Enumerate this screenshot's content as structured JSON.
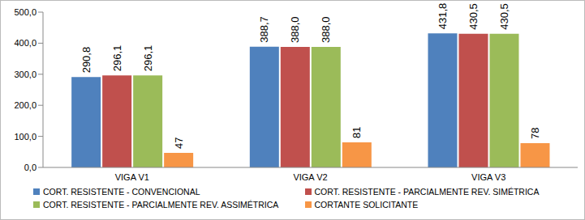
{
  "chart_data": {
    "type": "bar",
    "categories": [
      "VIGA V1",
      "VIGA V2",
      "VIGA V3"
    ],
    "series": [
      {
        "name": "CORT. RESISTENTE - CONVENCIONAL",
        "color": "#4f81bd",
        "values": [
          290.8,
          388.7,
          431.8
        ],
        "value_labels": [
          "290,8",
          "388,7",
          "431,8"
        ]
      },
      {
        "name": "CORT. RESISTENTE - PARCIALMENTE REV. SIMÉTRICA",
        "color": "#c0504d",
        "values": [
          296.1,
          388.0,
          430.5
        ],
        "value_labels": [
          "296,1",
          "388,0",
          "430,5"
        ]
      },
      {
        "name": "CORT. RESISTENTE - PARCIALMENTE REV. ASSIMÉTRICA",
        "color": "#9bbb59",
        "values": [
          296.1,
          388.0,
          430.5
        ],
        "value_labels": [
          "296,1",
          "388,0",
          "430,5"
        ]
      },
      {
        "name": "CORTANTE SOLICITANTE",
        "color": "#f79646",
        "values": [
          47,
          81,
          78
        ]
      }
    ],
    "ylim": [
      0,
      500
    ],
    "yticks": [
      {
        "value": 0,
        "label": "0,0"
      },
      {
        "value": 100,
        "label": "100,0"
      },
      {
        "value": 200,
        "label": "200,0"
      },
      {
        "value": 300,
        "label": "300,0"
      },
      {
        "value": 400,
        "label": "400,0"
      },
      {
        "value": 500,
        "label": "500,0"
      }
    ],
    "grid": false,
    "data_labels": true,
    "legend": "bottom"
  }
}
